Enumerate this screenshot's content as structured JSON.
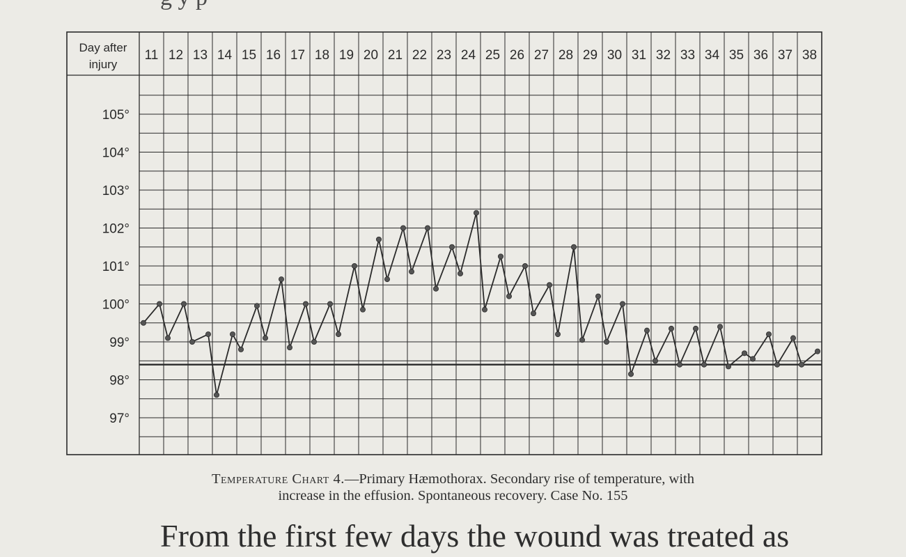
{
  "chart_data": {
    "type": "line",
    "header_label_line1": "Day after",
    "header_label_line2": "injury",
    "days": [
      "11",
      "12",
      "13",
      "14",
      "15",
      "16",
      "17",
      "18",
      "19",
      "20",
      "21",
      "22",
      "23",
      "24",
      "25",
      "26",
      "27",
      "28",
      "29",
      "30",
      "31",
      "32",
      "33",
      "34",
      "35",
      "36",
      "37",
      "38"
    ],
    "y_ticks": [
      "105°",
      "104°",
      "103°",
      "102°",
      "101°",
      "100°",
      "99°",
      "98°",
      "97°"
    ],
    "y_tick_values": [
      105,
      104,
      103,
      102,
      101,
      100,
      99,
      98,
      97
    ],
    "normal_line": 98.4,
    "ylim": [
      96.2,
      106.0
    ],
    "series": [
      {
        "values": [
          99.5,
          100.0,
          99.1,
          100.0,
          99.0,
          99.2,
          97.6,
          99.2,
          98.8,
          99.95,
          99.1,
          100.65,
          98.85,
          100.0,
          99.0,
          100.0,
          99.2,
          101.0,
          99.85,
          101.7,
          100.65,
          102.0,
          100.85,
          102.0,
          100.4,
          101.5,
          100.8,
          102.4,
          99.85,
          101.25,
          100.2,
          101.0,
          99.75,
          100.5,
          99.2,
          101.5,
          99.05,
          100.2,
          99.0,
          100.0,
          98.15,
          99.3,
          98.5,
          99.35,
          98.4,
          99.35,
          98.4,
          99.4,
          98.35,
          98.7,
          98.55,
          99.2,
          98.4,
          99.1,
          98.4,
          98.75
        ]
      }
    ],
    "grid": true
  },
  "caption": {
    "label": "Temperature Chart 4.",
    "line1_rest": "—Primary Hæmothorax.  Secondary rise of temperature, with",
    "line2": "increase in the effusion.  Spontaneous recovery.   Case No. 155"
  },
  "page_text": {
    "bottom_fragment": "From the first few days the wound was treated as",
    "top_fragment": "g                                             y p"
  },
  "colors": {
    "ink": "#2a2a2a",
    "paper": "#ecebe6"
  }
}
